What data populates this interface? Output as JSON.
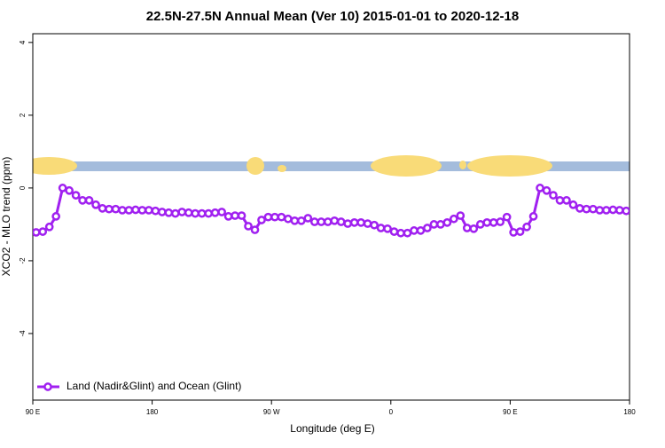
{
  "chart_data": {
    "type": "line",
    "title": "22.5N-27.5N Annual Mean (Ver 10)   2015-01-01 to 2020-12-18",
    "xlabel": "Longitude (deg E)",
    "ylabel": "XCO2 - MLO trend (ppm)",
    "xlim": [
      90,
      540
    ],
    "ylim": [
      -5.83,
      4.24
    ],
    "xticks": [
      {
        "value": 90,
        "label": "90 E"
      },
      180,
      {
        "value": 270,
        "label": "90 W"
      },
      {
        "value": 360,
        "label": "0"
      },
      {
        "value": 450,
        "label": "90 E"
      },
      {
        "value": 540,
        "label": "180"
      }
    ],
    "yticks": [
      4,
      2,
      0,
      -2,
      -4
    ],
    "legend": "bottom-left",
    "x": [
      92.5,
      97.5,
      102.5,
      107.5,
      112.5,
      117.5,
      122.5,
      127.5,
      132.5,
      137.5,
      142.5,
      147.5,
      152.5,
      157.5,
      162.5,
      167.5,
      172.5,
      177.5,
      182.5,
      187.5,
      192.5,
      197.5,
      202.5,
      207.5,
      212.5,
      217.5,
      222.5,
      227.5,
      232.5,
      237.5,
      242.5,
      247.5,
      252.5,
      257.5,
      262.5,
      267.5,
      272.5,
      277.5,
      282.5,
      287.5,
      292.5,
      297.5,
      302.5,
      307.5,
      312.5,
      317.5,
      322.5,
      327.5,
      332.5,
      337.5,
      342.5,
      347.5,
      352.5,
      357.5,
      362.5,
      367.5,
      372.5,
      377.5,
      382.5,
      387.5,
      392.5,
      397.5,
      402.5,
      407.5,
      412.5,
      417.5,
      422.5,
      427.5,
      432.5,
      437.5,
      442.5,
      447.5,
      452.5,
      457.5,
      462.5,
      467.5,
      472.5,
      477.5,
      482.5,
      487.5,
      492.5,
      497.5,
      502.5,
      507.5,
      512.5,
      517.5,
      522.5,
      527.5,
      532.5,
      537.5
    ],
    "series": [
      {
        "name": "Land (Nadir&Glint) and Ocean (Glint)",
        "color": "#a020f0",
        "values": [
          -1.22,
          -1.2,
          -1.07,
          -0.78,
          0.0,
          -0.07,
          -0.2,
          -0.34,
          -0.34,
          -0.46,
          -0.56,
          -0.58,
          -0.58,
          -0.61,
          -0.61,
          -0.6,
          -0.61,
          -0.61,
          -0.63,
          -0.66,
          -0.68,
          -0.7,
          -0.66,
          -0.68,
          -0.7,
          -0.7,
          -0.7,
          -0.68,
          -0.66,
          -0.78,
          -0.76,
          -0.76,
          -1.05,
          -1.15,
          -0.88,
          -0.8,
          -0.8,
          -0.8,
          -0.85,
          -0.9,
          -0.9,
          -0.83,
          -0.93,
          -0.93,
          -0.93,
          -0.9,
          -0.93,
          -0.98,
          -0.95,
          -0.95,
          -0.98,
          -1.02,
          -1.1,
          -1.12,
          -1.2,
          -1.24,
          -1.24,
          -1.17,
          -1.17,
          -1.1,
          -1.0,
          -1.0,
          -0.95,
          -0.85,
          -0.76,
          -1.1,
          -1.12,
          -1.0,
          -0.95,
          -0.95,
          -0.93,
          -0.8,
          -1.22,
          -1.2,
          -1.07,
          -0.78,
          0.0,
          -0.07,
          -0.2,
          -0.34,
          -0.34,
          -0.46,
          -0.56,
          -0.58,
          -0.58,
          -0.61,
          -0.61,
          -0.6,
          -0.61,
          -0.63
        ]
      }
    ]
  }
}
